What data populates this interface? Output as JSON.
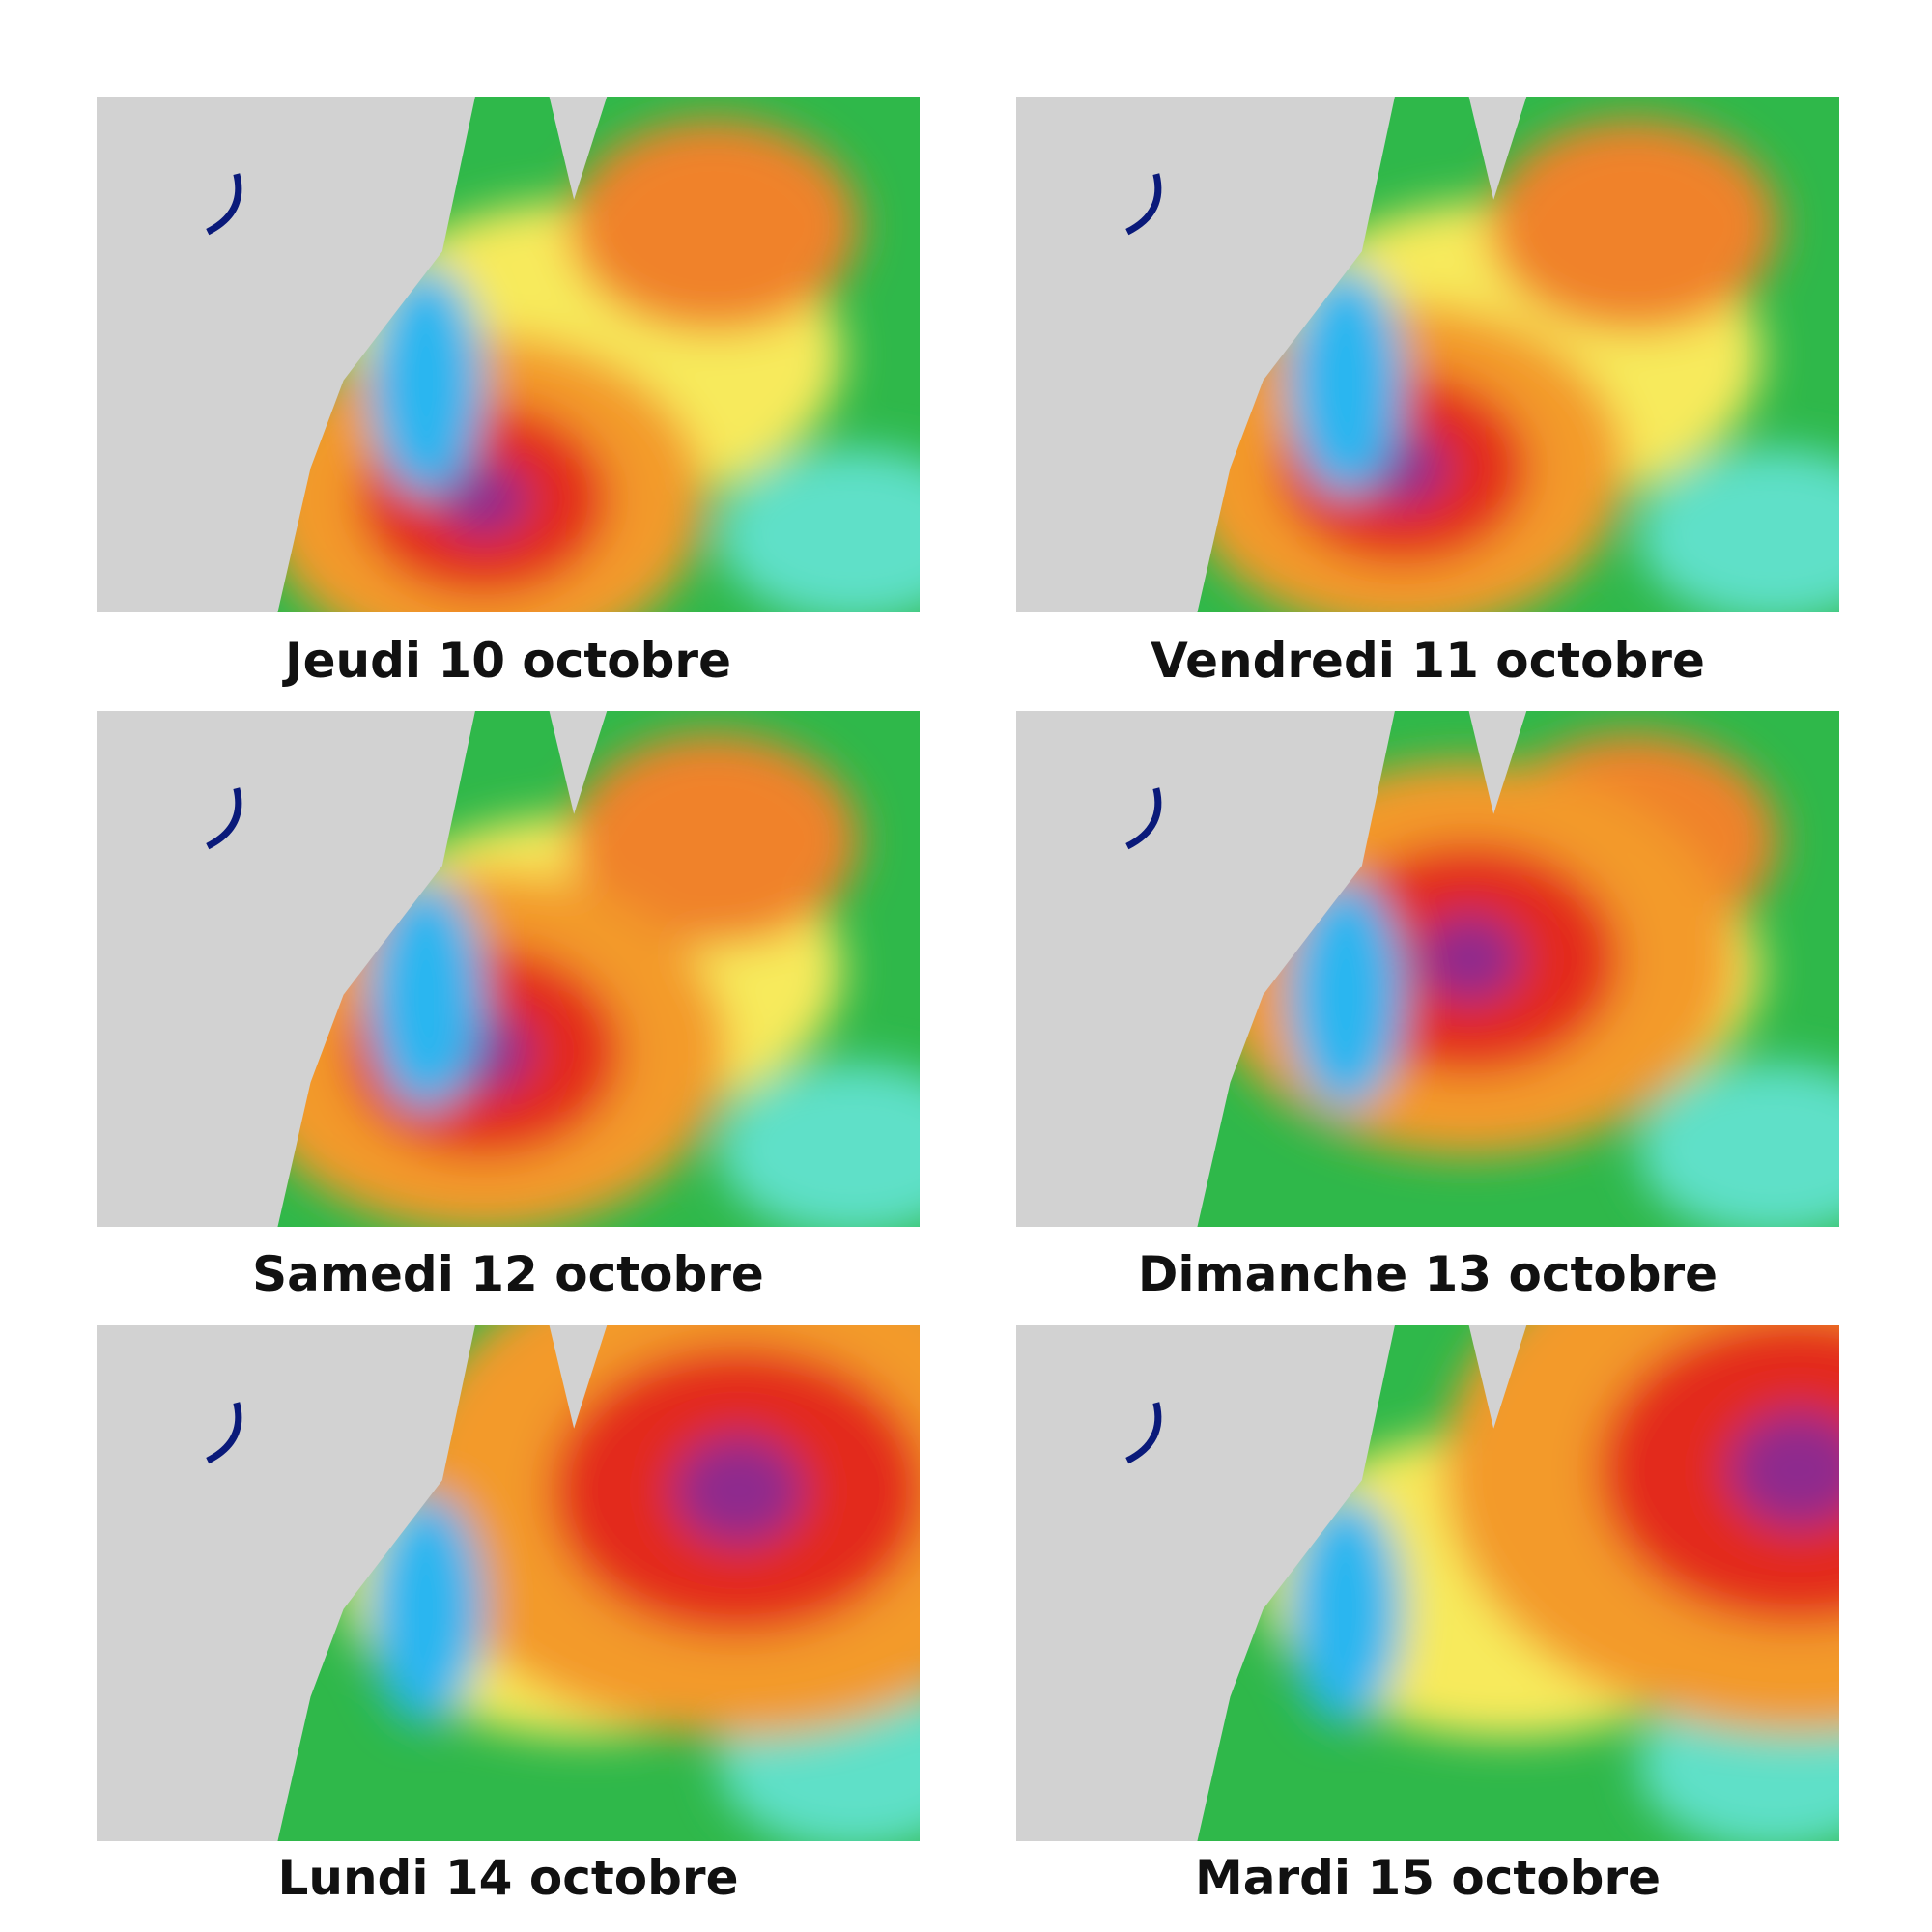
{
  "panels": [
    {
      "caption": "Jeudi 10 octobre"
    },
    {
      "caption": "Vendredi 11 octobre"
    },
    {
      "caption": "Samedi 12 octobre"
    },
    {
      "caption": "Dimanche 13 octobre"
    },
    {
      "caption": "Lundi 14 octobre"
    },
    {
      "caption": "Mardi 15 octobre"
    }
  ]
}
